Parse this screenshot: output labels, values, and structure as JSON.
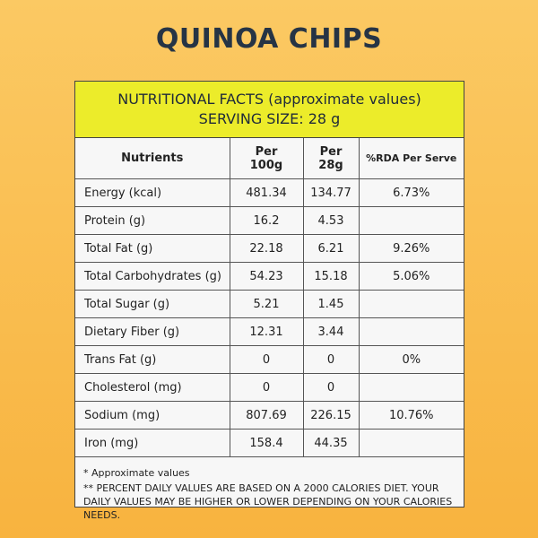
{
  "title": "QUINOA CHIPS",
  "banner": {
    "line1": "NUTRITIONAL FACTS (approximate values)",
    "line2": "SERVING SIZE: 28 g"
  },
  "table": {
    "headers": {
      "nutrients": "Nutrients",
      "per100_a": "Per",
      "per100_b": "100g",
      "per28_a": "Per",
      "per28_b": "28g",
      "rda": "%RDA Per Serve"
    },
    "rows": [
      {
        "name": "Energy (kcal)",
        "per100": "481.34",
        "per28": "134.77",
        "rda": "6.73%"
      },
      {
        "name": "Protein (g)",
        "per100": "16.2",
        "per28": "4.53",
        "rda": ""
      },
      {
        "name": "Total Fat (g)",
        "per100": "22.18",
        "per28": "6.21",
        "rda": "9.26%"
      },
      {
        "name": "Total Carbohydrates (g)",
        "per100": "54.23",
        "per28": "15.18",
        "rda": "5.06%"
      },
      {
        "name": "Total Sugar (g)",
        "per100": "5.21",
        "per28": "1.45",
        "rda": ""
      },
      {
        "name": "Dietary Fiber (g)",
        "per100": "12.31",
        "per28": "3.44",
        "rda": ""
      },
      {
        "name": "Trans Fat (g)",
        "per100": "0",
        "per28": "0",
        "rda": "0%"
      },
      {
        "name": "Cholesterol (mg)",
        "per100": "0",
        "per28": "0",
        "rda": ""
      },
      {
        "name": "Sodium  (mg)",
        "per100": "807.69",
        "per28": "226.15",
        "rda": "10.76%"
      },
      {
        "name": "Iron (mg)",
        "per100": "158.4",
        "per28": "44.35",
        "rda": ""
      }
    ]
  },
  "notes": {
    "line1": "* Approximate values",
    "line2": "** PERCENT DAILY VALUES ARE BASED ON A 2000 CALORIES DIET. YOUR DAILY VALUES MAY BE HIGHER OR LOWER DEPENDING ON YOUR CALORIES NEEDS."
  }
}
